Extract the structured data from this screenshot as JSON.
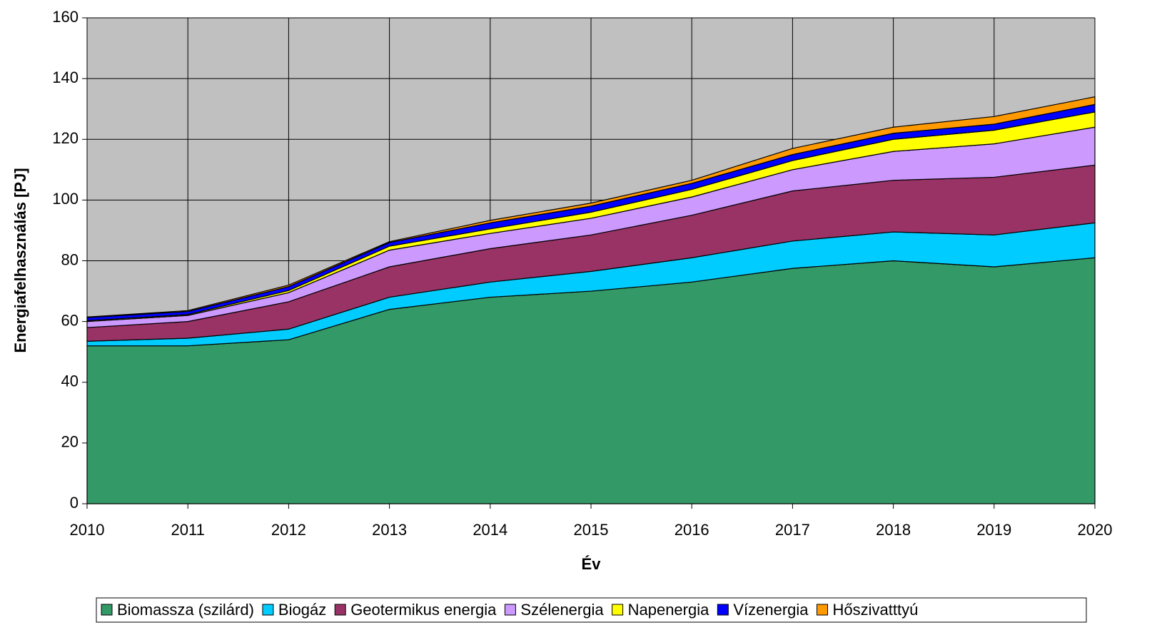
{
  "chart_data": {
    "type": "area",
    "stacked": true,
    "x_label": "Év",
    "y_label": "Energiafelhasználás [PJ]",
    "x": [
      2010,
      2011,
      2012,
      2013,
      2014,
      2015,
      2016,
      2017,
      2018,
      2019,
      2020
    ],
    "xlim": [
      2010,
      2020
    ],
    "xticks": [
      2010,
      2011,
      2012,
      2013,
      2014,
      2015,
      2016,
      2017,
      2018,
      2019,
      2020
    ],
    "ylim": [
      0,
      160
    ],
    "yticks": [
      0,
      20,
      40,
      60,
      80,
      100,
      120,
      140,
      160
    ],
    "grid": true,
    "legend": "bottom",
    "series": [
      {
        "name": "Biomassza (szilárd)",
        "color": "#339966",
        "values": [
          52,
          52,
          54,
          64,
          68,
          70,
          73,
          77.5,
          80,
          78,
          81
        ]
      },
      {
        "name": "Biogáz",
        "color": "#00ccff",
        "values": [
          1.5,
          2.5,
          3.5,
          4,
          5,
          6.5,
          8,
          9,
          9.5,
          10.5,
          11.5
        ]
      },
      {
        "name": "Geotermikus energia",
        "color": "#993366",
        "values": [
          4.5,
          5.5,
          9,
          10,
          11,
          12,
          14,
          16.5,
          17,
          19,
          19
        ]
      },
      {
        "name": "Szélenergia",
        "color": "#cc99ff",
        "values": [
          2,
          2,
          3,
          5.5,
          5,
          5.5,
          6,
          7,
          9.5,
          11,
          12.5
        ]
      },
      {
        "name": "Napenergia",
        "color": "#ffff00",
        "values": [
          0.3,
          0.3,
          0.7,
          1.3,
          1.5,
          2,
          2.5,
          3,
          4,
          4.5,
          5
        ]
      },
      {
        "name": "Vízenergia",
        "color": "#0000ff",
        "values": [
          1,
          1,
          1.3,
          1.2,
          2,
          2,
          2,
          2,
          2,
          2,
          2.5
        ]
      },
      {
        "name": "Hőszivatttyú",
        "color": "#ff9900",
        "values": [
          0.2,
          0.3,
          0.5,
          0.3,
          0.8,
          1,
          1,
          2,
          2,
          2.5,
          2.5
        ]
      }
    ]
  }
}
